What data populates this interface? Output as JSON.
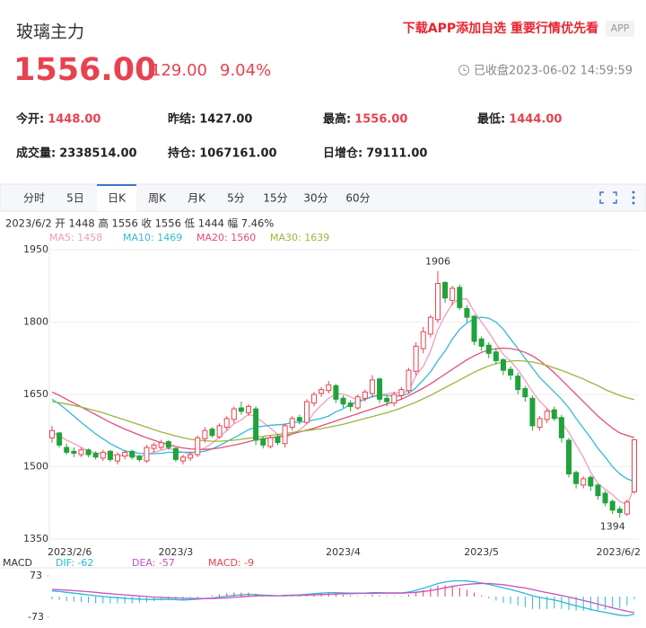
{
  "header": {
    "title": "玻璃主力",
    "price": "1556.00",
    "change": "129.00",
    "change_pct": "9.04%",
    "status": "已收盘",
    "time": "2023-06-02 14:59:59",
    "promo": "下载APP添加自选 重要行情优先看",
    "app": "APP"
  },
  "stats": [
    [
      {
        "label": "今开:",
        "value": "1448.00",
        "color": "#e8424f"
      },
      {
        "label": "昨结:",
        "value": "1427.00",
        "color": "#222"
      },
      {
        "label": "最高:",
        "value": "1556.00",
        "color": "#e8424f"
      },
      {
        "label": "最低:",
        "value": "1444.00",
        "color": "#e8424f"
      }
    ],
    [
      {
        "label": "成交量:",
        "value": "2338514.00",
        "color": "#222"
      },
      {
        "label": "持仓:",
        "value": "1067161.00",
        "color": "#222"
      },
      {
        "label": "日增仓:",
        "value": "79111.00",
        "color": "#222"
      }
    ]
  ],
  "tabs": {
    "items": [
      "分时",
      "5日",
      "日K",
      "周K",
      "月K",
      "5分",
      "15分",
      "30分",
      "60分"
    ],
    "selected": 2
  },
  "info": "2023/6/2 开 1448 高 1556 收 1556 低 1444 幅 7.46%",
  "chart_data": [
    {
      "type": "candlestick",
      "up_color": "#e8424f",
      "down_color": "#1fa33b",
      "grid": true,
      "ylim": [
        1350,
        1950
      ],
      "yticks": [
        1350,
        1500,
        1650,
        1800,
        1950
      ],
      "x": [
        "2023/2/6",
        null,
        null,
        null,
        null,
        null,
        null,
        null,
        null,
        null,
        null,
        null,
        null,
        null,
        null,
        null,
        null,
        "2023/3",
        null,
        null,
        null,
        null,
        null,
        null,
        null,
        null,
        null,
        null,
        null,
        null,
        null,
        null,
        null,
        null,
        null,
        null,
        null,
        null,
        null,
        null,
        "2023/4",
        null,
        null,
        null,
        null,
        null,
        null,
        null,
        null,
        null,
        null,
        null,
        null,
        null,
        null,
        null,
        null,
        null,
        null,
        "2023/5",
        null,
        null,
        null,
        null,
        null,
        null,
        null,
        null,
        null,
        null,
        null,
        null,
        null,
        null,
        null,
        null,
        null,
        null,
        null,
        null,
        "2023/6/2"
      ],
      "open": [
        1560,
        1570,
        1540,
        1532,
        1525,
        1535,
        1528,
        1518,
        1532,
        1512,
        1522,
        1532,
        1522,
        1512,
        1538,
        1540,
        1552,
        1538,
        1512,
        1518,
        1525,
        1558,
        1578,
        1562,
        1582,
        1598,
        1622,
        1612,
        1620,
        1558,
        1542,
        1562,
        1548,
        1582,
        1602,
        1592,
        1632,
        1652,
        1658,
        1668,
        1642,
        1632,
        1622,
        1642,
        1652,
        1682,
        1642,
        1632,
        1648,
        1658,
        1698,
        1745,
        1775,
        1805,
        1882,
        1845,
        1872,
        1828,
        1812,
        1765,
        1752,
        1738,
        1722,
        1702,
        1688,
        1662,
        1642,
        1582,
        1598,
        1618,
        1602,
        1555,
        1488,
        1462,
        1478,
        1462,
        1445,
        1428,
        1412,
        1402,
        1448
      ],
      "high": [
        1585,
        1572,
        1548,
        1540,
        1540,
        1538,
        1532,
        1535,
        1535,
        1530,
        1535,
        1535,
        1525,
        1545,
        1550,
        1556,
        1555,
        1540,
        1525,
        1530,
        1565,
        1582,
        1582,
        1590,
        1605,
        1625,
        1635,
        1630,
        1625,
        1562,
        1565,
        1568,
        1590,
        1605,
        1608,
        1640,
        1655,
        1665,
        1678,
        1672,
        1648,
        1638,
        1650,
        1660,
        1690,
        1685,
        1648,
        1655,
        1665,
        1705,
        1758,
        1790,
        1815,
        1906,
        1885,
        1875,
        1878,
        1835,
        1815,
        1770,
        1758,
        1745,
        1725,
        1708,
        1695,
        1668,
        1648,
        1605,
        1620,
        1625,
        1608,
        1560,
        1492,
        1480,
        1482,
        1465,
        1450,
        1432,
        1418,
        1432,
        1556
      ],
      "low": [
        1550,
        1540,
        1525,
        1520,
        1520,
        1520,
        1515,
        1512,
        1510,
        1505,
        1515,
        1515,
        1510,
        1508,
        1530,
        1535,
        1535,
        1510,
        1505,
        1512,
        1520,
        1550,
        1560,
        1558,
        1575,
        1590,
        1608,
        1605,
        1545,
        1538,
        1538,
        1545,
        1540,
        1575,
        1588,
        1588,
        1625,
        1645,
        1652,
        1632,
        1622,
        1615,
        1618,
        1635,
        1645,
        1632,
        1625,
        1625,
        1640,
        1652,
        1690,
        1735,
        1768,
        1798,
        1840,
        1835,
        1825,
        1800,
        1752,
        1740,
        1725,
        1712,
        1690,
        1680,
        1650,
        1635,
        1575,
        1575,
        1590,
        1595,
        1550,
        1478,
        1455,
        1455,
        1450,
        1432,
        1418,
        1402,
        1394,
        1398,
        1444
      ],
      "close": [
        1575,
        1545,
        1530,
        1528,
        1535,
        1525,
        1520,
        1530,
        1515,
        1525,
        1530,
        1520,
        1515,
        1540,
        1545,
        1550,
        1540,
        1515,
        1520,
        1525,
        1560,
        1575,
        1565,
        1585,
        1600,
        1620,
        1615,
        1625,
        1555,
        1545,
        1560,
        1550,
        1585,
        1600,
        1595,
        1635,
        1650,
        1660,
        1670,
        1640,
        1630,
        1625,
        1645,
        1655,
        1680,
        1640,
        1635,
        1650,
        1660,
        1700,
        1750,
        1780,
        1810,
        1880,
        1850,
        1870,
        1830,
        1810,
        1760,
        1750,
        1735,
        1720,
        1700,
        1690,
        1660,
        1645,
        1585,
        1600,
        1615,
        1600,
        1560,
        1485,
        1465,
        1475,
        1460,
        1440,
        1425,
        1410,
        1405,
        1427,
        1556
      ],
      "high_label": 1906,
      "low_label": 1394,
      "series": [
        {
          "name": "MA5: 1458",
          "color": "#f29bbd",
          "values": [
            1570,
            1565,
            1555,
            1548,
            1540,
            1533,
            1528,
            1528,
            1526,
            1523,
            1524,
            1524,
            1521,
            1525,
            1530,
            1534,
            1538,
            1534,
            1530,
            1527,
            1532,
            1539,
            1549,
            1562,
            1575,
            1589,
            1597,
            1609,
            1603,
            1592,
            1580,
            1567,
            1559,
            1568,
            1576,
            1589,
            1613,
            1628,
            1642,
            1651,
            1651,
            1645,
            1638,
            1639,
            1647,
            1649,
            1651,
            1654,
            1653,
            1657,
            1689,
            1708,
            1740,
            1784,
            1814,
            1838,
            1848,
            1848,
            1822,
            1800,
            1779,
            1755,
            1733,
            1719,
            1701,
            1679,
            1656,
            1636,
            1621,
            1609,
            1592,
            1571,
            1545,
            1520,
            1489,
            1465,
            1453,
            1442,
            1428,
            1421,
            1458
          ]
        },
        {
          "name": "MA10: 1469",
          "color": "#35b8d8",
          "values": [
            1640,
            1630,
            1618,
            1605,
            1592,
            1580,
            1568,
            1558,
            1548,
            1540,
            1533,
            1530,
            1528,
            1527,
            1527,
            1528,
            1530,
            1530,
            1530,
            1530,
            1530,
            1532,
            1537,
            1544,
            1552,
            1560,
            1568,
            1577,
            1582,
            1584,
            1586,
            1587,
            1588,
            1592,
            1592,
            1594,
            1597,
            1600,
            1605,
            1614,
            1620,
            1630,
            1634,
            1640,
            1645,
            1648,
            1648,
            1646,
            1647,
            1652,
            1664,
            1680,
            1697,
            1720,
            1740,
            1765,
            1785,
            1798,
            1807,
            1810,
            1808,
            1800,
            1785,
            1765,
            1745,
            1725,
            1705,
            1685,
            1670,
            1655,
            1640,
            1622,
            1600,
            1580,
            1560,
            1538,
            1520,
            1500,
            1485,
            1475,
            1469
          ]
        },
        {
          "name": "MA20: 1560",
          "color": "#e0507a",
          "values": [
            1655,
            1648,
            1640,
            1632,
            1624,
            1616,
            1608,
            1600,
            1592,
            1585,
            1578,
            1572,
            1566,
            1560,
            1555,
            1550,
            1546,
            1542,
            1539,
            1537,
            1536,
            1536,
            1537,
            1539,
            1542,
            1545,
            1548,
            1552,
            1556,
            1558,
            1560,
            1562,
            1565,
            1568,
            1572,
            1576,
            1580,
            1585,
            1590,
            1595,
            1600,
            1605,
            1610,
            1615,
            1620,
            1625,
            1630,
            1635,
            1640,
            1647,
            1655,
            1663,
            1672,
            1682,
            1692,
            1702,
            1712,
            1722,
            1730,
            1737,
            1742,
            1745,
            1746,
            1745,
            1742,
            1737,
            1730,
            1720,
            1708,
            1695,
            1680,
            1665,
            1650,
            1635,
            1620,
            1605,
            1592,
            1580,
            1570,
            1565,
            1560
          ]
        },
        {
          "name": "MA30: 1639",
          "color": "#9cb53c",
          "values": [
            1635,
            1633,
            1630,
            1627,
            1624,
            1620,
            1616,
            1612,
            1607,
            1602,
            1597,
            1592,
            1587,
            1582,
            1577,
            1572,
            1568,
            1564,
            1560,
            1557,
            1555,
            1554,
            1553,
            1553,
            1554,
            1555,
            1557,
            1559,
            1561,
            1563,
            1565,
            1567,
            1569,
            1571,
            1573,
            1575,
            1577,
            1579,
            1582,
            1585,
            1588,
            1592,
            1596,
            1600,
            1604,
            1608,
            1612,
            1617,
            1622,
            1628,
            1634,
            1641,
            1648,
            1656,
            1664,
            1672,
            1680,
            1688,
            1696,
            1703,
            1709,
            1714,
            1717,
            1719,
            1720,
            1719,
            1717,
            1714,
            1710,
            1705,
            1700,
            1694,
            1688,
            1682,
            1675,
            1668,
            1660,
            1654,
            1648,
            1643,
            1639
          ]
        }
      ]
    },
    {
      "type": "macd",
      "title": "MACD",
      "ylim": [
        -73,
        73
      ],
      "yticks": [
        73,
        -73
      ],
      "up_color": "#e8424f",
      "down_color": "#2bb8c9",
      "series": [
        {
          "name": "DIF: -62",
          "color": "#2bb8d8",
          "kind": "line",
          "values": [
            20,
            18,
            15,
            12,
            9,
            6,
            3,
            0,
            -2,
            -4,
            -6,
            -8,
            -9,
            -10,
            -10,
            -10,
            -10,
            -11,
            -12,
            -11,
            -9,
            -7,
            -5,
            -2,
            1,
            4,
            6,
            8,
            7,
            5,
            4,
            3,
            4,
            5,
            6,
            8,
            10,
            12,
            14,
            14,
            13,
            12,
            12,
            12,
            14,
            14,
            13,
            13,
            13,
            16,
            22,
            29,
            37,
            46,
            51,
            55,
            56,
            55,
            52,
            48,
            43,
            37,
            31,
            25,
            18,
            11,
            3,
            -3,
            -8,
            -12,
            -18,
            -26,
            -33,
            -39,
            -45,
            -51,
            -56,
            -61,
            -66,
            -68,
            -62
          ]
        },
        {
          "name": "DEA: -57",
          "color": "#c94fc0",
          "kind": "line",
          "values": [
            25,
            24,
            23,
            21,
            19,
            17,
            15,
            12,
            10,
            8,
            6,
            4,
            2,
            0,
            -2,
            -3,
            -4,
            -5,
            -6,
            -7,
            -7,
            -7,
            -7,
            -6,
            -5,
            -3,
            -1,
            1,
            2,
            3,
            3,
            3,
            3,
            4,
            4,
            5,
            6,
            7,
            8,
            9,
            10,
            10,
            11,
            11,
            11,
            12,
            12,
            12,
            12,
            13,
            15,
            18,
            21,
            26,
            31,
            36,
            40,
            43,
            45,
            46,
            46,
            44,
            42,
            38,
            34,
            30,
            25,
            19,
            14,
            9,
            4,
            -2,
            -8,
            -14,
            -20,
            -27,
            -33,
            -40,
            -46,
            -52,
            -57
          ]
        },
        {
          "name": "MACD: -9",
          "color": "#e8424f",
          "kind": "bar",
          "values": [
            -10,
            -12,
            -16,
            -18,
            -20,
            -22,
            -24,
            -24,
            -24,
            -24,
            -24,
            -24,
            -22,
            -20,
            -16,
            -14,
            -12,
            -12,
            -12,
            -8,
            -4,
            0,
            4,
            8,
            12,
            14,
            14,
            14,
            10,
            4,
            2,
            0,
            2,
            2,
            4,
            6,
            8,
            10,
            12,
            10,
            6,
            4,
            2,
            2,
            6,
            4,
            2,
            2,
            2,
            6,
            14,
            22,
            32,
            40,
            40,
            38,
            32,
            24,
            14,
            4,
            -6,
            -14,
            -22,
            -26,
            -32,
            -38,
            -44,
            -44,
            -44,
            -42,
            -44,
            -48,
            -50,
            -50,
            -50,
            -48,
            -46,
            -42,
            -40,
            -32,
            -9
          ]
        }
      ]
    }
  ]
}
